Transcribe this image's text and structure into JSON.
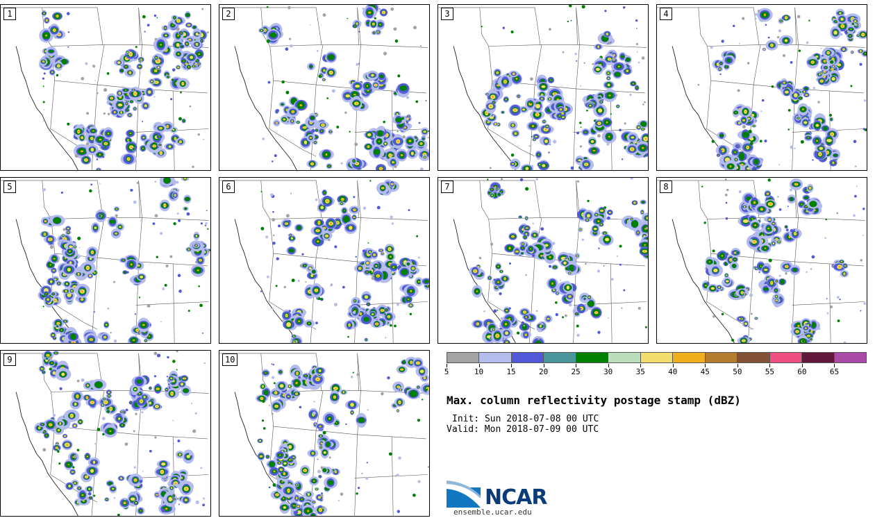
{
  "panels": [
    {
      "number": "1",
      "seed": 11
    },
    {
      "number": "2",
      "seed": 23
    },
    {
      "number": "3",
      "seed": 37
    },
    {
      "number": "4",
      "seed": 41
    },
    {
      "number": "5",
      "seed": 53
    },
    {
      "number": "6",
      "seed": 67
    },
    {
      "number": "7",
      "seed": 71
    },
    {
      "number": "8",
      "seed": 83
    },
    {
      "number": "9",
      "seed": 97
    },
    {
      "number": "10",
      "seed": 101
    }
  ],
  "colorbar": {
    "colors": [
      "#a3a3a3",
      "#b4bcec",
      "#5159d8",
      "#4b959c",
      "#008000",
      "#bbddbb",
      "#f3dd6c",
      "#efae1d",
      "#b47c2e",
      "#835136",
      "#ef4f80",
      "#62183a",
      "#a94aa6"
    ],
    "tick_labels": [
      "5",
      "10",
      "15",
      "20",
      "25",
      "30",
      "35",
      "40",
      "45",
      "50",
      "55",
      "60",
      "65"
    ]
  },
  "title": "Max. column reflectivity postage stamp (dBZ)",
  "init": "Init: Sun 2018-07-08 00 UTC",
  "valid": "Valid: Mon 2018-07-09 00 UTC",
  "logo": {
    "text": "NCAR",
    "website": "ensemble.ucar.edu"
  }
}
